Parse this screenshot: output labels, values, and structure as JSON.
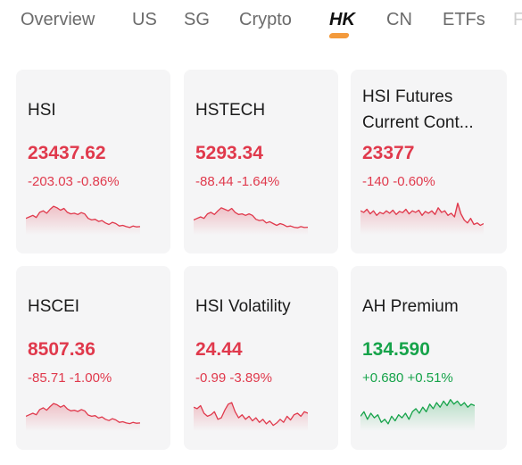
{
  "tabs": [
    {
      "label": "Overview",
      "active": false
    },
    {
      "label": "US",
      "active": false
    },
    {
      "label": "SG",
      "active": false
    },
    {
      "label": "Crypto",
      "active": false
    },
    {
      "label": "HK",
      "active": true
    },
    {
      "label": "CN",
      "active": false
    },
    {
      "label": "ETFs",
      "active": false
    },
    {
      "label": "F",
      "active": false
    }
  ],
  "colors": {
    "down": "#e0394c",
    "up": "#16a34a",
    "active_tab_accent": "#f39a3c",
    "card_bg": "#f5f5f6"
  },
  "cards": [
    {
      "title": "HSI",
      "price": "23437.62",
      "change": "-203.03",
      "change_pct": "-0.86%",
      "direction": "down",
      "spark": [
        0.55,
        0.5,
        0.45,
        0.52,
        0.35,
        0.3,
        0.38,
        0.25,
        0.15,
        0.2,
        0.28,
        0.22,
        0.35,
        0.4,
        0.38,
        0.42,
        0.36,
        0.4,
        0.55,
        0.6,
        0.58,
        0.65,
        0.62,
        0.7,
        0.75,
        0.68,
        0.72,
        0.8,
        0.78,
        0.82,
        0.85,
        0.8,
        0.83,
        0.82
      ]
    },
    {
      "title": "HSTECH",
      "price": "5293.34",
      "change": "-88.44",
      "change_pct": "-1.64%",
      "direction": "down",
      "spark": [
        0.6,
        0.55,
        0.5,
        0.55,
        0.4,
        0.35,
        0.42,
        0.3,
        0.2,
        0.25,
        0.3,
        0.22,
        0.35,
        0.42,
        0.4,
        0.45,
        0.4,
        0.45,
        0.58,
        0.62,
        0.6,
        0.7,
        0.66,
        0.72,
        0.78,
        0.72,
        0.76,
        0.82,
        0.8,
        0.84,
        0.86,
        0.82,
        0.85,
        0.84
      ]
    },
    {
      "title": "HSI Futures Current Cont...",
      "price": "23377",
      "change": "-140",
      "change_pct": "-0.60%",
      "direction": "down",
      "spark": [
        0.3,
        0.35,
        0.25,
        0.4,
        0.3,
        0.45,
        0.35,
        0.4,
        0.3,
        0.38,
        0.28,
        0.42,
        0.32,
        0.36,
        0.25,
        0.4,
        0.3,
        0.35,
        0.28,
        0.45,
        0.32,
        0.38,
        0.3,
        0.42,
        0.2,
        0.35,
        0.3,
        0.45,
        0.38,
        0.5,
        0.05,
        0.4,
        0.6,
        0.7,
        0.55,
        0.75,
        0.7,
        0.78,
        0.72
      ]
    },
    {
      "title": "HSCEI",
      "price": "8507.36",
      "change": "-85.71",
      "change_pct": "-1.00%",
      "direction": "down",
      "spark": [
        0.6,
        0.55,
        0.5,
        0.55,
        0.38,
        0.32,
        0.4,
        0.28,
        0.18,
        0.22,
        0.3,
        0.24,
        0.36,
        0.42,
        0.4,
        0.44,
        0.38,
        0.42,
        0.56,
        0.6,
        0.58,
        0.66,
        0.62,
        0.7,
        0.74,
        0.68,
        0.72,
        0.8,
        0.78,
        0.82,
        0.84,
        0.8,
        0.83,
        0.82
      ]
    },
    {
      "title": "HSI Volatility",
      "price": "24.44",
      "change": "-0.99",
      "change_pct": "-3.89%",
      "direction": "down",
      "spark": [
        0.3,
        0.35,
        0.25,
        0.5,
        0.6,
        0.55,
        0.45,
        0.7,
        0.65,
        0.4,
        0.2,
        0.15,
        0.45,
        0.65,
        0.55,
        0.7,
        0.6,
        0.75,
        0.65,
        0.8,
        0.7,
        0.85,
        0.75,
        0.9,
        0.82,
        0.7,
        0.8,
        0.6,
        0.72,
        0.55,
        0.5,
        0.6,
        0.45,
        0.5
      ]
    },
    {
      "title": "AH Premium",
      "price": "134.590",
      "change": "+0.680",
      "change_pct": "+0.51%",
      "direction": "up",
      "spark": [
        0.6,
        0.45,
        0.7,
        0.5,
        0.65,
        0.55,
        0.8,
        0.7,
        0.85,
        0.6,
        0.75,
        0.55,
        0.65,
        0.5,
        0.7,
        0.45,
        0.35,
        0.5,
        0.3,
        0.45,
        0.2,
        0.35,
        0.15,
        0.3,
        0.1,
        0.25,
        0.05,
        0.2,
        0.1,
        0.25,
        0.15,
        0.3,
        0.2,
        0.25
      ]
    }
  ]
}
